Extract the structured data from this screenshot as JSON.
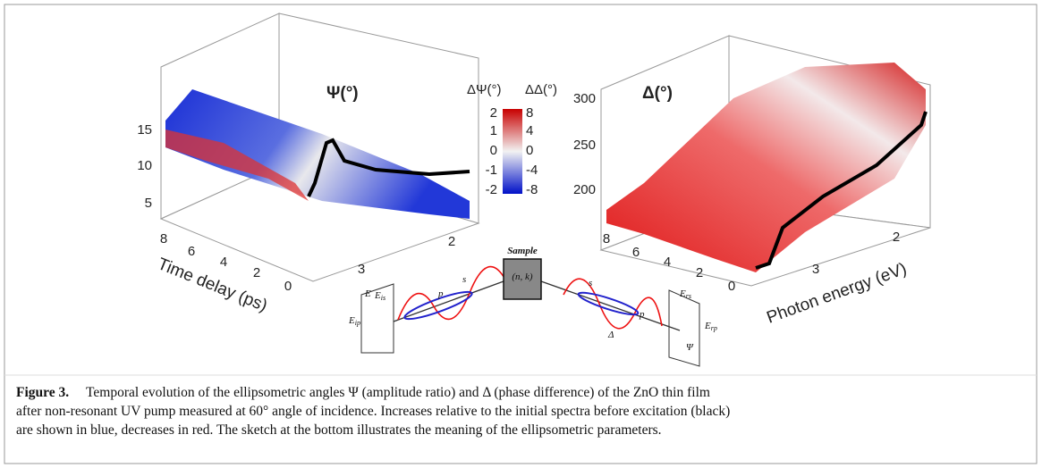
{
  "figure": {
    "left_panel": {
      "title": "Ψ(°)",
      "z_ticks": [
        15,
        10,
        5
      ],
      "time_ticks": [
        8,
        6,
        4,
        2,
        0
      ],
      "time_label": "Time delay (ps)",
      "energy_ticks": [
        2,
        3
      ]
    },
    "colorbar": {
      "left_label": "ΔΨ(°)",
      "right_label": "ΔΔ(°)",
      "left_ticks": [
        2,
        1,
        0,
        -1,
        -2
      ],
      "right_ticks": [
        8,
        4,
        0,
        -4,
        -8
      ]
    },
    "right_panel": {
      "title": "Δ(°)",
      "z_ticks": [
        300,
        250,
        200
      ],
      "time_ticks": [
        8,
        6,
        4,
        2,
        0
      ],
      "energy_ticks": [
        2,
        3
      ],
      "energy_label": "Photon energy (eV)"
    },
    "sketch": {
      "sample_label": "Sample",
      "sample_inner": "(n, k)",
      "labels": [
        {
          "main": "E",
          "sub": ""
        },
        {
          "main": "E",
          "sub": "is"
        },
        {
          "main": "E",
          "sub": "ip"
        },
        {
          "main": "s",
          "sub": ""
        },
        {
          "main": "p",
          "sub": ""
        },
        {
          "main": "s",
          "sub": ""
        },
        {
          "main": "p",
          "sub": ""
        },
        {
          "main": "Δ",
          "sub": ""
        },
        {
          "main": "E",
          "sub": "rs"
        },
        {
          "main": "E",
          "sub": "rp"
        },
        {
          "main": "Ψ",
          "sub": ""
        }
      ]
    }
  },
  "caption": {
    "label": "Figure 3.",
    "lines": [
      "Temporal evolution of the ellipsometric angles Ψ (amplitude ratio) and Δ (phase difference) of the ZnO thin film",
      "after non-resonant UV pump measured at 60° angle of incidence. Increases relative to the initial spectra before excitation (black)",
      "are shown in blue, decreases in red. The sketch at the bottom illustrates the meaning of the ellipsometric parameters."
    ]
  }
}
